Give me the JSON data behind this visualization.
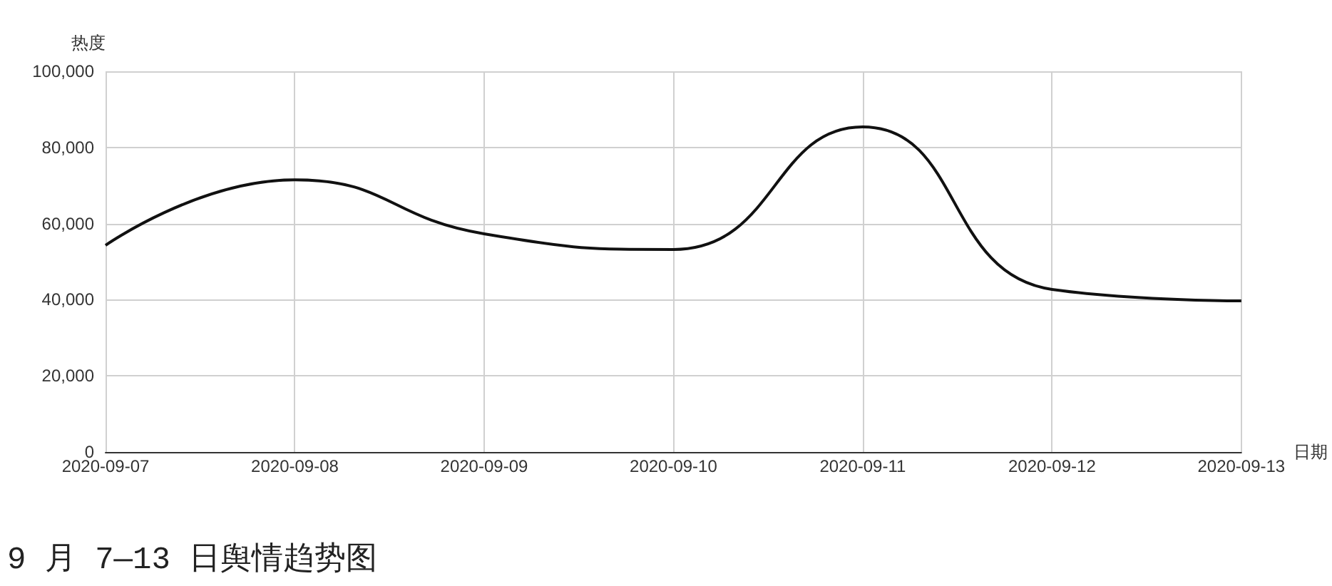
{
  "chart_data": {
    "type": "line",
    "title": "9 月 7—13 日舆情趋势图",
    "xlabel": "日期",
    "ylabel": "热度",
    "categories": [
      "2020-09-07",
      "2020-09-08",
      "2020-09-09",
      "2020-09-10",
      "2020-09-11",
      "2020-09-12",
      "2020-09-13"
    ],
    "series": [
      {
        "color": "#111111",
        "values": [
          54300,
          71500,
          57300,
          53200,
          85400,
          42700,
          39700
        ]
      }
    ],
    "ylim": [
      0,
      100000
    ],
    "yticks": [
      0,
      {
        "value": 20000,
        "label": "20,000"
      },
      {
        "value": 40000,
        "label": "40,000"
      },
      {
        "value": 60000,
        "label": "60,000"
      },
      {
        "value": 80000,
        "label": "80,000"
      },
      {
        "value": 100000,
        "label": "100,000"
      }
    ],
    "grid": true,
    "marker": "none",
    "line_style": "solid"
  }
}
